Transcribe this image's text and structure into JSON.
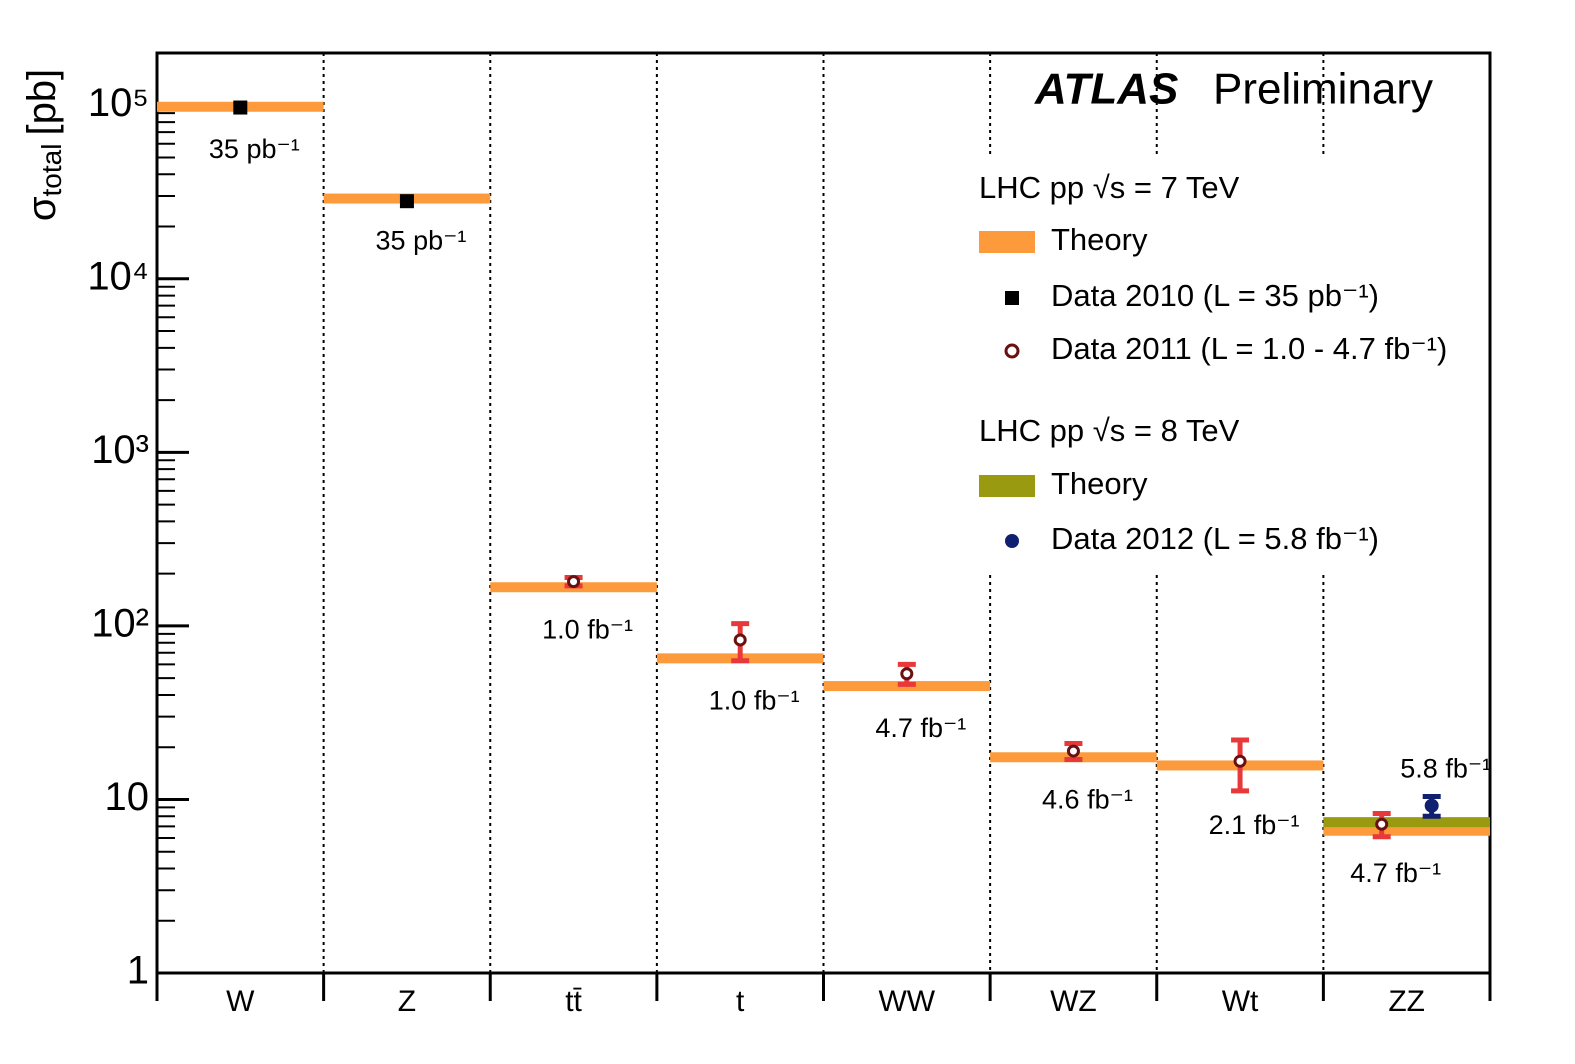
{
  "chart_data": {
    "type": "log-errorbar",
    "brand": "ATLAS",
    "title": "Preliminary",
    "y_label": {
      "symbol": "σ",
      "subscript": "total",
      "unit": "[pb]"
    },
    "categories": [
      "W",
      "Z",
      "tt̄",
      "t",
      "WW",
      "WZ",
      "Wt",
      "ZZ"
    ],
    "log_y": true,
    "ylim": [
      1,
      200000
    ],
    "yticks": [
      1,
      10,
      {
        "value": 100,
        "label": "10²"
      },
      {
        "value": 1000,
        "label": "10³"
      },
      {
        "value": 10000,
        "label": "10⁴"
      },
      {
        "value": 100000,
        "label": "10⁵"
      }
    ],
    "yminor": [
      2,
      3,
      4,
      5,
      6,
      7,
      8,
      9,
      20,
      30,
      40,
      50,
      60,
      70,
      80,
      90,
      200,
      300,
      400,
      500,
      600,
      700,
      800,
      900,
      2000,
      3000,
      4000,
      5000,
      6000,
      7000,
      8000,
      9000,
      20000,
      30000,
      40000,
      50000,
      60000,
      70000,
      80000,
      90000,
      200000
    ],
    "legend_headers": [
      "LHC pp √s = 7 TeV",
      "LHC pp √s = 8 TeV"
    ],
    "series": [
      {
        "name": "Theory",
        "marker": "band",
        "color": "#fd9a3c",
        "values": [
          98000,
          29000,
          167,
          65,
          45,
          17.5,
          15.7,
          6.6
        ]
      },
      {
        "name": "Data 2010 (L = 35 pb⁻¹)",
        "marker": "square",
        "color": "#000000",
        "values": [
          97000,
          28000,
          null,
          null,
          null,
          null,
          null,
          null
        ],
        "lumi_labels": [
          "35 pb⁻¹",
          "35 pb⁻¹",
          null,
          null,
          null,
          null,
          null,
          null
        ]
      },
      {
        "name": "Data 2011 (L = 1.0 - 4.7 fb⁻¹)",
        "marker": "open-circle",
        "color": "#6b1010",
        "error_color": "#e8383a",
        "values": [
          null,
          null,
          180,
          83,
          53,
          19,
          16.6,
          7.2
        ],
        "errors": [
          null,
          null,
          10,
          20,
          7,
          2,
          5.4,
          1.1
        ],
        "lumi_labels": [
          null,
          null,
          "1.0 fb⁻¹",
          "1.0 fb⁻¹",
          "4.7 fb⁻¹",
          "4.6 fb⁻¹",
          "2.1 fb⁻¹",
          "4.7 fb⁻¹"
        ]
      },
      {
        "name": "Theory",
        "marker": "band",
        "color": "#9a9a10",
        "values": [
          null,
          null,
          null,
          null,
          null,
          null,
          null,
          7.4
        ]
      },
      {
        "name": "Data 2012 (L = 5.8 fb⁻¹)",
        "marker": "circle",
        "color": "#102070",
        "error_color": "#102070",
        "values": [
          null,
          null,
          null,
          null,
          null,
          null,
          null,
          9.2
        ],
        "errors": [
          null,
          null,
          null,
          null,
          null,
          null,
          null,
          1.2
        ],
        "lumi_labels": [
          null,
          null,
          null,
          null,
          null,
          null,
          null,
          "5.8 fb⁻¹"
        ]
      }
    ]
  }
}
